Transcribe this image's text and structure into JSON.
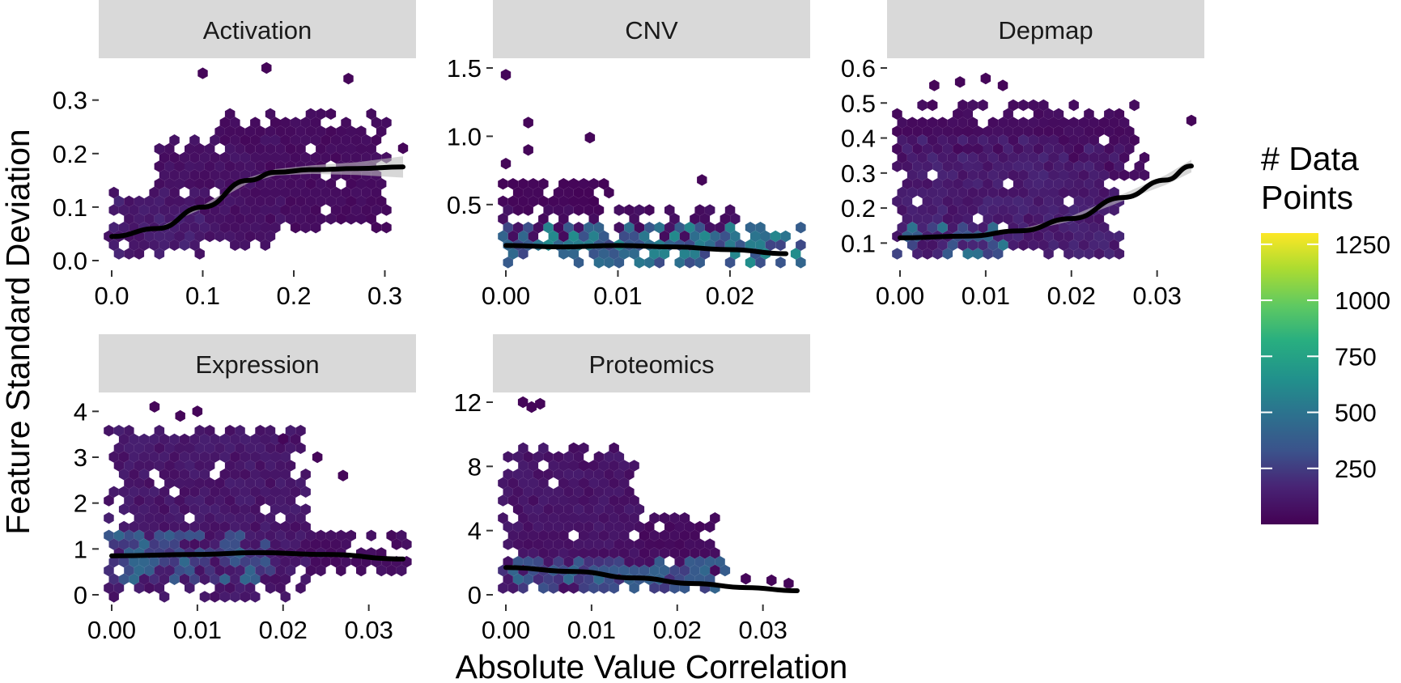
{
  "figure": {
    "xlabel": "Absolute Value Correlation",
    "ylabel": "Feature Standard Deviation"
  },
  "legend": {
    "title_lines": [
      "# Data",
      "Points"
    ],
    "ticks": [
      250,
      500,
      750,
      1000,
      1250
    ],
    "tick_labels": [
      "250",
      "500",
      "750",
      "1000",
      "1250"
    ],
    "range": [
      0,
      1300
    ],
    "colormap": "viridis",
    "colors": [
      "#440154",
      "#3b528b",
      "#21918c",
      "#5ec962",
      "#fde725"
    ]
  },
  "chart_data": [
    {
      "type": "heatmap",
      "subtype": "hexbin with smooth trend line",
      "panel": "Activation",
      "xlim": [
        0.0,
        0.32
      ],
      "ylim": [
        0.0,
        0.36
      ],
      "x_ticks": [
        0.0,
        0.1,
        0.2,
        0.3
      ],
      "x_tick_labels": [
        "0.0",
        "0.1",
        "0.2",
        "0.3"
      ],
      "y_ticks": [
        0.0,
        0.1,
        0.2,
        0.3
      ],
      "y_tick_labels": [
        "0.0",
        "0.1",
        "0.2",
        "0.3"
      ],
      "density_max_count": 60,
      "hex_regions": [
        {
          "x": [
            0.0,
            0.1
          ],
          "y": [
            0.01,
            0.13
          ],
          "density": 0.1
        },
        {
          "x": [
            0.05,
            0.18
          ],
          "y": [
            0.03,
            0.22
          ],
          "density": 0.06
        },
        {
          "x": [
            0.12,
            0.3
          ],
          "y": [
            0.06,
            0.27
          ],
          "density": 0.04
        }
      ],
      "outliers": [
        [
          0.1,
          0.35
        ],
        [
          0.17,
          0.36
        ],
        [
          0.26,
          0.34
        ],
        [
          0.32,
          0.21
        ]
      ],
      "trend": {
        "x": [
          0.0,
          0.05,
          0.1,
          0.15,
          0.18,
          0.22,
          0.27,
          0.32
        ],
        "y": [
          0.045,
          0.06,
          0.1,
          0.15,
          0.165,
          0.17,
          0.172,
          0.175
        ],
        "ci": [
          0.0,
          0.0,
          0.003,
          0.005,
          0.006,
          0.008,
          0.012,
          0.02
        ]
      }
    },
    {
      "type": "heatmap",
      "subtype": "hexbin with smooth trend line",
      "panel": "CNV",
      "xlim": [
        0.0,
        0.026
      ],
      "ylim": [
        0.09,
        1.5
      ],
      "x_ticks": [
        0.0,
        0.01,
        0.02
      ],
      "x_tick_labels": [
        "0.00",
        "0.01",
        "0.02"
      ],
      "y_ticks": [
        0.5,
        1.0,
        1.5
      ],
      "y_tick_labels": [
        "0.5",
        "1.0",
        "1.5"
      ],
      "density_max_count": 1300,
      "hex_regions": [
        {
          "x": [
            0.0,
            0.026
          ],
          "y": [
            0.1,
            0.3
          ],
          "density": 0.35
        },
        {
          "x": [
            0.0,
            0.02
          ],
          "y": [
            0.25,
            0.45
          ],
          "density": 0.05
        },
        {
          "x": [
            0.0,
            0.009
          ],
          "y": [
            0.45,
            0.65
          ],
          "density": 0.02
        }
      ],
      "outliers": [
        [
          0.0,
          1.45
        ],
        [
          0.002,
          1.1
        ],
        [
          0.0075,
          0.99
        ],
        [
          0.002,
          0.9
        ],
        [
          0.0175,
          0.68
        ],
        [
          0.0,
          0.8
        ]
      ],
      "trend": {
        "x": [
          0.0,
          0.005,
          0.01,
          0.015,
          0.02,
          0.025
        ],
        "y": [
          0.2,
          0.19,
          0.2,
          0.19,
          0.17,
          0.14
        ],
        "ci": [
          0.005,
          0.004,
          0.004,
          0.004,
          0.006,
          0.01
        ]
      }
    },
    {
      "type": "heatmap",
      "subtype": "hexbin with smooth trend line",
      "panel": "Depmap",
      "xlim": [
        0.0,
        0.034
      ],
      "ylim": [
        0.05,
        0.6
      ],
      "x_ticks": [
        0.0,
        0.01,
        0.02,
        0.03
      ],
      "x_tick_labels": [
        "0.00",
        "0.01",
        "0.02",
        "0.03"
      ],
      "y_ticks": [
        0.1,
        0.2,
        0.3,
        0.4,
        0.5,
        0.6
      ],
      "y_tick_labels": [
        "0.1",
        "0.2",
        "0.3",
        "0.4",
        "0.5",
        "0.6"
      ],
      "density_max_count": 1300,
      "hex_regions": [
        {
          "x": [
            0.0,
            0.025
          ],
          "y": [
            0.07,
            0.38
          ],
          "density": 0.1
        },
        {
          "x": [
            0.0,
            0.012
          ],
          "y": [
            0.08,
            0.14
          ],
          "density": 0.3
        },
        {
          "x": [
            0.0,
            0.028
          ],
          "y": [
            0.3,
            0.48
          ],
          "density": 0.04
        }
      ],
      "outliers": [
        [
          0.004,
          0.55
        ],
        [
          0.007,
          0.56
        ],
        [
          0.01,
          0.57
        ],
        [
          0.012,
          0.55
        ],
        [
          0.034,
          0.45
        ]
      ],
      "trend": {
        "x": [
          0.0,
          0.008,
          0.014,
          0.02,
          0.026,
          0.031,
          0.034
        ],
        "y": [
          0.115,
          0.12,
          0.135,
          0.17,
          0.23,
          0.28,
          0.32
        ],
        "ci": [
          0.005,
          0.004,
          0.005,
          0.007,
          0.01,
          0.014,
          0.018
        ]
      }
    },
    {
      "type": "heatmap",
      "subtype": "hexbin with smooth trend line",
      "panel": "Expression",
      "xlim": [
        0.0,
        0.034
      ],
      "ylim": [
        0.0,
        4.2
      ],
      "x_ticks": [
        0.0,
        0.01,
        0.02,
        0.03
      ],
      "x_tick_labels": [
        "0.00",
        "0.01",
        "0.02",
        "0.03"
      ],
      "y_ticks": [
        0,
        1,
        2,
        3,
        4
      ],
      "y_tick_labels": [
        "0",
        "1",
        "2",
        "3",
        "4"
      ],
      "density_max_count": 1300,
      "hex_regions": [
        {
          "x": [
            0.0,
            0.022
          ],
          "y": [
            0.0,
            3.6
          ],
          "density": 0.08
        },
        {
          "x": [
            0.0,
            0.018
          ],
          "y": [
            0.4,
            1.2
          ],
          "density": 0.25
        },
        {
          "x": [
            0.02,
            0.034
          ],
          "y": [
            0.5,
            1.2
          ],
          "density": 0.05
        }
      ],
      "outliers": [
        [
          0.005,
          4.1
        ],
        [
          0.01,
          4.0
        ],
        [
          0.008,
          3.9
        ],
        [
          0.02,
          3.4
        ],
        [
          0.024,
          3.0
        ],
        [
          0.027,
          2.6
        ]
      ],
      "trend": {
        "x": [
          0.0,
          0.01,
          0.017,
          0.025,
          0.034
        ],
        "y": [
          0.85,
          0.88,
          0.92,
          0.88,
          0.78
        ],
        "ci": [
          0.01,
          0.01,
          0.012,
          0.015,
          0.02
        ]
      }
    },
    {
      "type": "heatmap",
      "subtype": "hexbin with smooth trend line",
      "panel": "Proteomics",
      "xlim": [
        0.0,
        0.034
      ],
      "ylim": [
        0.0,
        12.0
      ],
      "x_ticks": [
        0.0,
        0.01,
        0.02,
        0.03
      ],
      "x_tick_labels": [
        "0.00",
        "0.01",
        "0.02",
        "0.03"
      ],
      "y_ticks": [
        0,
        4,
        8,
        12
      ],
      "y_tick_labels": [
        "0",
        "4",
        "8",
        "12"
      ],
      "density_max_count": 1300,
      "hex_regions": [
        {
          "x": [
            0.0,
            0.015
          ],
          "y": [
            0.3,
            9.0
          ],
          "density": 0.07
        },
        {
          "x": [
            0.0,
            0.025
          ],
          "y": [
            0.3,
            2.2
          ],
          "density": 0.25
        },
        {
          "x": [
            0.014,
            0.024
          ],
          "y": [
            1.5,
            4.5
          ],
          "density": 0.04
        }
      ],
      "outliers": [
        [
          0.002,
          12.0
        ],
        [
          0.003,
          11.7
        ],
        [
          0.004,
          11.9
        ],
        [
          0.028,
          1.0
        ],
        [
          0.033,
          0.7
        ],
        [
          0.031,
          0.9
        ]
      ],
      "trend": {
        "x": [
          0.0,
          0.008,
          0.015,
          0.022,
          0.028,
          0.034
        ],
        "y": [
          1.7,
          1.45,
          1.05,
          0.7,
          0.45,
          0.25
        ],
        "ci": [
          0.03,
          0.03,
          0.04,
          0.06,
          0.1,
          0.15
        ]
      }
    }
  ]
}
